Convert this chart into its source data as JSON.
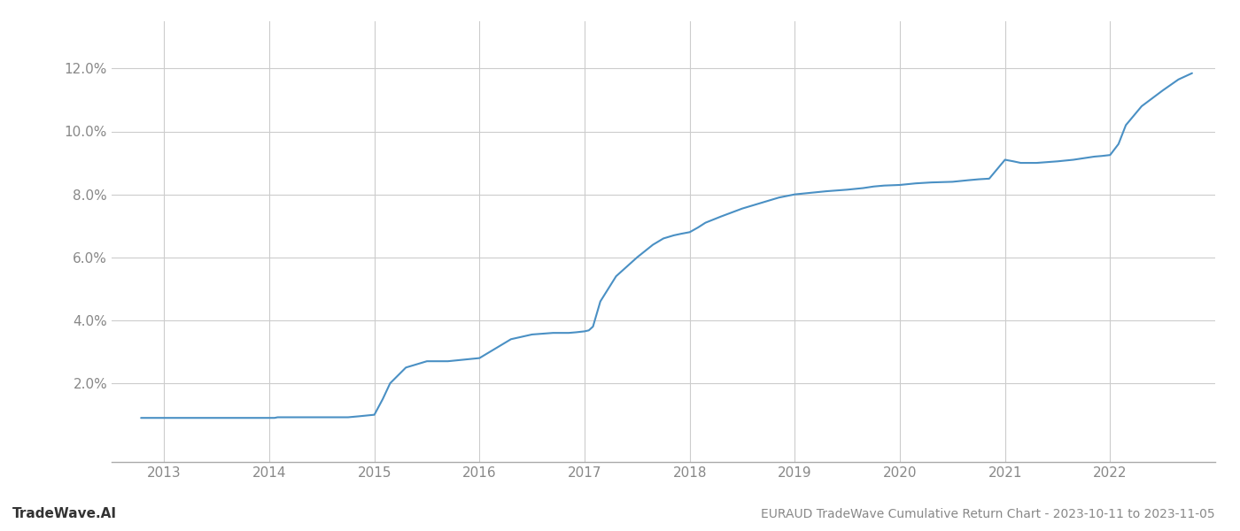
{
  "title": "EURAUD TradeWave Cumulative Return Chart - 2023-10-11 to 2023-11-05",
  "watermark": "TradeWave.AI",
  "line_color": "#4a90c4",
  "background_color": "#ffffff",
  "grid_color": "#cccccc",
  "x_years": [
    2013,
    2014,
    2015,
    2016,
    2017,
    2018,
    2019,
    2020,
    2021,
    2022
  ],
  "data_x": [
    2012.78,
    2013.0,
    2013.5,
    2013.78,
    2014.0,
    2014.05,
    2014.08,
    2014.25,
    2014.5,
    2014.75,
    2014.85,
    2015.0,
    2015.08,
    2015.15,
    2015.3,
    2015.5,
    2015.7,
    2015.85,
    2016.0,
    2016.15,
    2016.3,
    2016.5,
    2016.7,
    2016.85,
    2016.92,
    2017.0,
    2017.04,
    2017.08,
    2017.15,
    2017.3,
    2017.5,
    2017.65,
    2017.75,
    2017.85,
    2017.92,
    2018.0,
    2018.08,
    2018.15,
    2018.3,
    2018.5,
    2018.65,
    2018.75,
    2018.85,
    2019.0,
    2019.15,
    2019.3,
    2019.5,
    2019.65,
    2019.75,
    2019.85,
    2020.0,
    2020.15,
    2020.3,
    2020.5,
    2020.65,
    2020.75,
    2020.85,
    2021.0,
    2021.08,
    2021.15,
    2021.3,
    2021.5,
    2021.65,
    2021.75,
    2021.85,
    2021.92,
    2022.0,
    2022.08,
    2022.15,
    2022.3,
    2022.5,
    2022.65,
    2022.78
  ],
  "data_y": [
    0.009,
    0.009,
    0.009,
    0.009,
    0.009,
    0.009,
    0.0092,
    0.0092,
    0.0092,
    0.0092,
    0.0095,
    0.01,
    0.015,
    0.02,
    0.025,
    0.027,
    0.027,
    0.0275,
    0.028,
    0.031,
    0.034,
    0.0355,
    0.036,
    0.036,
    0.0362,
    0.0365,
    0.0368,
    0.038,
    0.046,
    0.054,
    0.06,
    0.064,
    0.066,
    0.067,
    0.0675,
    0.068,
    0.0695,
    0.071,
    0.073,
    0.0755,
    0.077,
    0.078,
    0.079,
    0.08,
    0.0805,
    0.081,
    0.0815,
    0.082,
    0.0825,
    0.0828,
    0.083,
    0.0835,
    0.0838,
    0.084,
    0.0845,
    0.0848,
    0.085,
    0.091,
    0.0905,
    0.09,
    0.09,
    0.0905,
    0.091,
    0.0915,
    0.092,
    0.0922,
    0.0925,
    0.096,
    0.102,
    0.108,
    0.113,
    0.1165,
    0.1185
  ],
  "ylim": [
    -0.005,
    0.135
  ],
  "xlim": [
    2012.5,
    2023.0
  ],
  "yticks": [
    0.02,
    0.04,
    0.06,
    0.08,
    0.1,
    0.12
  ],
  "title_fontsize": 10,
  "watermark_fontsize": 11,
  "tick_fontsize": 11,
  "axis_color": "#888888",
  "spine_color": "#aaaaaa",
  "tick_label_color": "#888888"
}
